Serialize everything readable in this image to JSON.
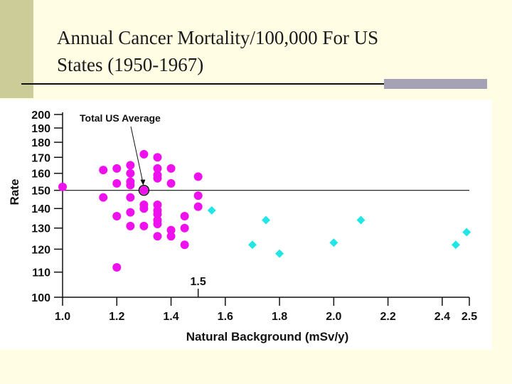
{
  "slide": {
    "title_line1": "Annual Cancer Mortality/100,000 For US",
    "title_line2": "States (1950-1967)"
  },
  "colors": {
    "olive_bar": "#cccc99",
    "gray_bar": "#a4a2b4",
    "magenta": "#ee11ee",
    "cyan": "#22e6e6",
    "background": "#fffde3"
  },
  "chart_data": {
    "type": "scatter",
    "xlabel": "Natural Background (mSv/y)",
    "ylabel": "Rate",
    "xlim": [
      1.0,
      2.5
    ],
    "ylim": [
      100,
      200
    ],
    "y_scale": "log",
    "grid": false,
    "x_ticks": [
      "1.0",
      "1.2",
      "1.4",
      "1.6",
      "1.8",
      "2.0",
      "2.2",
      "2.4",
      "2.5"
    ],
    "y_ticks": [
      "100",
      "110",
      "120",
      "130",
      "140",
      "150",
      "160",
      "170",
      "180",
      "190",
      "200"
    ],
    "reference_line": {
      "y": 150,
      "label": "Total US Average",
      "point": [
        1.3,
        150
      ]
    },
    "annotation": {
      "text": "1.5",
      "x": 1.5
    },
    "series": [
      {
        "marker": "circle",
        "color": "#ee11ee",
        "points": [
          [
            1.0,
            152
          ],
          [
            1.15,
            162
          ],
          [
            1.15,
            146
          ],
          [
            1.2,
            163
          ],
          [
            1.2,
            154
          ],
          [
            1.2,
            136
          ],
          [
            1.2,
            112
          ],
          [
            1.25,
            165
          ],
          [
            1.25,
            160
          ],
          [
            1.25,
            155
          ],
          [
            1.25,
            153
          ],
          [
            1.25,
            146
          ],
          [
            1.25,
            138
          ],
          [
            1.25,
            131
          ],
          [
            1.3,
            172
          ],
          [
            1.3,
            150
          ],
          [
            1.3,
            142
          ],
          [
            1.3,
            140
          ],
          [
            1.3,
            131
          ],
          [
            1.35,
            170
          ],
          [
            1.35,
            163
          ],
          [
            1.35,
            159
          ],
          [
            1.35,
            157
          ],
          [
            1.35,
            142
          ],
          [
            1.35,
            139
          ],
          [
            1.35,
            137
          ],
          [
            1.35,
            134
          ],
          [
            1.35,
            132
          ],
          [
            1.35,
            126
          ],
          [
            1.4,
            163
          ],
          [
            1.4,
            154
          ],
          [
            1.4,
            129
          ],
          [
            1.4,
            126
          ],
          [
            1.45,
            136
          ],
          [
            1.45,
            130
          ],
          [
            1.45,
            122
          ],
          [
            1.5,
            158
          ],
          [
            1.5,
            147
          ],
          [
            1.5,
            141
          ]
        ]
      },
      {
        "marker": "diamond",
        "color": "#22e6e6",
        "points": [
          [
            1.55,
            139
          ],
          [
            1.7,
            122
          ],
          [
            1.75,
            134
          ],
          [
            1.8,
            118
          ],
          [
            2.0,
            123
          ],
          [
            2.1,
            134
          ],
          [
            2.45,
            122
          ],
          [
            2.49,
            128
          ]
        ]
      }
    ]
  }
}
